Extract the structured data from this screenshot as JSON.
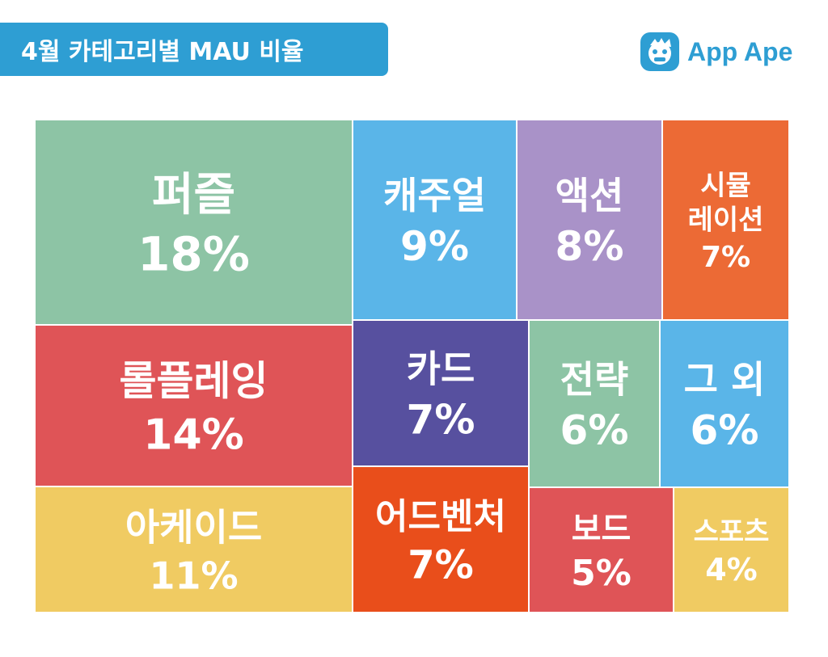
{
  "header": {
    "title": "4월 카테고리별 MAU 비율"
  },
  "brand": {
    "name": "App Ape",
    "color": "#2e9ed3",
    "icon": "monkey-logo-icon"
  },
  "chart_data": {
    "type": "treemap",
    "title": "4월 카테고리별 MAU 비율",
    "unit": "%",
    "items": [
      {
        "label": "퍼즐",
        "value": 18,
        "value_label": "18%",
        "color": "#8dc4a5"
      },
      {
        "label": "롤플레잉",
        "value": 14,
        "value_label": "14%",
        "color": "#df5457"
      },
      {
        "label": "아케이드",
        "value": 11,
        "value_label": "11%",
        "color": "#f0cb62"
      },
      {
        "label": "캐주얼",
        "value": 9,
        "value_label": "9%",
        "color": "#5ab5e8"
      },
      {
        "label": "액션",
        "value": 8,
        "value_label": "8%",
        "color": "#a992c8"
      },
      {
        "label": "시뮬레이션",
        "label_lines": [
          "시뮬",
          "레이션"
        ],
        "value": 7,
        "value_label": "7%",
        "color": "#ec6a35"
      },
      {
        "label": "카드",
        "value": 7,
        "value_label": "7%",
        "color": "#57509f"
      },
      {
        "label": "전략",
        "value": 6,
        "value_label": "6%",
        "color": "#8dc4a5"
      },
      {
        "label": "그 외",
        "value": 6,
        "value_label": "6%",
        "color": "#5ab5e8"
      },
      {
        "label": "어드벤처",
        "value": 7,
        "value_label": "7%",
        "color": "#e94e1b"
      },
      {
        "label": "보드",
        "value": 5,
        "value_label": "5%",
        "color": "#df5457"
      },
      {
        "label": "스포츠",
        "value": 4,
        "value_label": "4%",
        "color": "#f0cb62"
      }
    ]
  }
}
